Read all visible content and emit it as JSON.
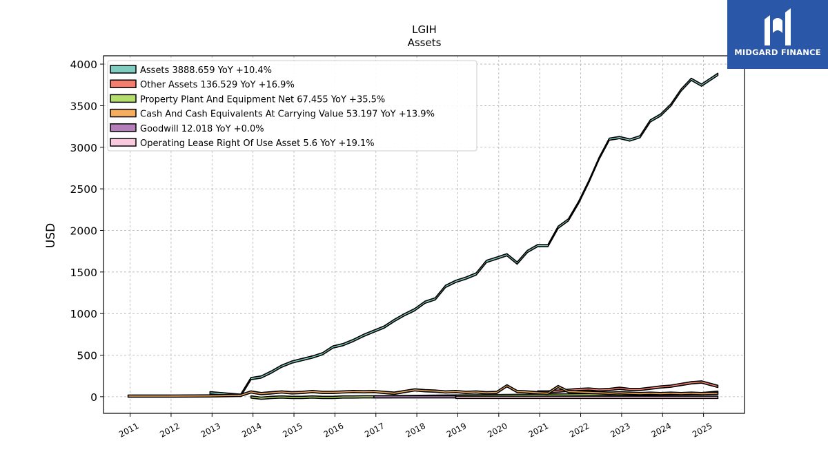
{
  "brand": {
    "name": "MIDGARD FINANCE"
  },
  "chart_data": {
    "type": "area",
    "title": "LGIH",
    "subtitle": "Assets",
    "ylabel": "USD",
    "xlabel": "",
    "ylim": [
      -200,
      4100
    ],
    "xlim": [
      2010.35,
      2026.0
    ],
    "yticks": [
      0,
      500,
      1000,
      1500,
      2000,
      2500,
      3000,
      3500,
      4000
    ],
    "xticks": [
      "2011",
      "2012",
      "2013",
      "2014",
      "2015",
      "2016",
      "2017",
      "2018",
      "2019",
      "2020",
      "2021",
      "2022",
      "2023",
      "2024",
      "2025"
    ],
    "grid": true,
    "legend_position": "top-left",
    "series": [
      {
        "name": "Assets",
        "legend": "Assets  3888.659 YoY +10.4%",
        "color": "#7fccc0",
        "points": [
          [
            2012.95,
            60
          ],
          [
            2013.7,
            30
          ],
          [
            2013.95,
            230
          ],
          [
            2014.2,
            250
          ],
          [
            2014.45,
            310
          ],
          [
            2014.7,
            380
          ],
          [
            2014.95,
            430
          ],
          [
            2015.2,
            460
          ],
          [
            2015.45,
            490
          ],
          [
            2015.7,
            530
          ],
          [
            2015.95,
            610
          ],
          [
            2016.2,
            640
          ],
          [
            2016.45,
            690
          ],
          [
            2016.7,
            750
          ],
          [
            2016.95,
            800
          ],
          [
            2017.2,
            850
          ],
          [
            2017.45,
            930
          ],
          [
            2017.7,
            1000
          ],
          [
            2017.95,
            1060
          ],
          [
            2018.2,
            1150
          ],
          [
            2018.45,
            1190
          ],
          [
            2018.7,
            1340
          ],
          [
            2018.95,
            1400
          ],
          [
            2019.2,
            1440
          ],
          [
            2019.45,
            1490
          ],
          [
            2019.7,
            1640
          ],
          [
            2019.95,
            1680
          ],
          [
            2020.2,
            1720
          ],
          [
            2020.45,
            1620
          ],
          [
            2020.7,
            1760
          ],
          [
            2020.95,
            1830
          ],
          [
            2021.2,
            1830
          ],
          [
            2021.45,
            2050
          ],
          [
            2021.7,
            2140
          ],
          [
            2021.95,
            2350
          ],
          [
            2022.2,
            2600
          ],
          [
            2022.45,
            2880
          ],
          [
            2022.7,
            3110
          ],
          [
            2022.95,
            3130
          ],
          [
            2023.2,
            3100
          ],
          [
            2023.45,
            3140
          ],
          [
            2023.7,
            3330
          ],
          [
            2023.95,
            3400
          ],
          [
            2024.2,
            3520
          ],
          [
            2024.45,
            3700
          ],
          [
            2024.7,
            3830
          ],
          [
            2024.95,
            3760
          ],
          [
            2025.35,
            3890
          ]
        ]
      },
      {
        "name": "Other Assets",
        "legend": "Other Assets  136.529 YoY +16.9%",
        "color": "#f47e6e",
        "points": [
          [
            2020.95,
            70
          ],
          [
            2021.2,
            70
          ],
          [
            2021.45,
            80
          ],
          [
            2021.7,
            90
          ],
          [
            2021.95,
            100
          ],
          [
            2022.2,
            105
          ],
          [
            2022.45,
            95
          ],
          [
            2022.7,
            100
          ],
          [
            2022.95,
            115
          ],
          [
            2023.2,
            100
          ],
          [
            2023.45,
            100
          ],
          [
            2023.7,
            115
          ],
          [
            2023.95,
            130
          ],
          [
            2024.2,
            140
          ],
          [
            2024.45,
            160
          ],
          [
            2024.7,
            180
          ],
          [
            2024.95,
            190
          ],
          [
            2025.35,
            137
          ]
        ]
      },
      {
        "name": "Property Plant And Equipment Net",
        "legend": "Property Plant And Equipment Net  67.455 YoY +35.5%",
        "color": "#b5dd6b",
        "points": [
          [
            2013.95,
            10
          ],
          [
            2014.2,
            -5
          ],
          [
            2014.45,
            5
          ],
          [
            2014.7,
            10
          ],
          [
            2014.95,
            5
          ],
          [
            2015.2,
            5
          ],
          [
            2015.45,
            10
          ],
          [
            2015.7,
            5
          ],
          [
            2015.95,
            5
          ],
          [
            2016.2,
            10
          ],
          [
            2016.45,
            10
          ],
          [
            2016.7,
            12
          ],
          [
            2016.95,
            12
          ],
          [
            2024.95,
            50
          ],
          [
            2025.35,
            67
          ]
        ]
      },
      {
        "name": "Cash And Cash Equivalents At Carrying Value",
        "legend": "Cash And Cash Equivalents At Carrying Value  53.197 YoY +13.9%",
        "color": "#f6ad5d",
        "points": [
          [
            2010.95,
            20
          ],
          [
            2011.95,
            20
          ],
          [
            2012.95,
            22
          ],
          [
            2013.7,
            30
          ],
          [
            2013.95,
            70
          ],
          [
            2014.2,
            50
          ],
          [
            2014.45,
            60
          ],
          [
            2014.7,
            70
          ],
          [
            2014.95,
            60
          ],
          [
            2015.2,
            65
          ],
          [
            2015.45,
            75
          ],
          [
            2015.7,
            65
          ],
          [
            2015.95,
            65
          ],
          [
            2016.2,
            70
          ],
          [
            2016.45,
            75
          ],
          [
            2016.7,
            72
          ],
          [
            2016.95,
            75
          ],
          [
            2017.2,
            65
          ],
          [
            2017.45,
            55
          ],
          [
            2017.7,
            75
          ],
          [
            2017.95,
            95
          ],
          [
            2018.2,
            85
          ],
          [
            2018.45,
            80
          ],
          [
            2018.7,
            70
          ],
          [
            2018.95,
            75
          ],
          [
            2019.2,
            65
          ],
          [
            2019.45,
            70
          ],
          [
            2019.7,
            60
          ],
          [
            2019.95,
            65
          ],
          [
            2020.2,
            145
          ],
          [
            2020.45,
            75
          ],
          [
            2020.7,
            70
          ],
          [
            2020.95,
            60
          ],
          [
            2021.2,
            55
          ],
          [
            2021.45,
            135
          ],
          [
            2021.7,
            75
          ],
          [
            2021.95,
            70
          ],
          [
            2022.2,
            65
          ],
          [
            2022.45,
            60
          ],
          [
            2022.7,
            55
          ],
          [
            2022.95,
            60
          ],
          [
            2023.2,
            55
          ],
          [
            2023.45,
            50
          ],
          [
            2023.7,
            55
          ],
          [
            2023.95,
            50
          ],
          [
            2024.2,
            55
          ],
          [
            2024.45,
            50
          ],
          [
            2024.7,
            55
          ],
          [
            2024.95,
            50
          ],
          [
            2025.35,
            53
          ]
        ]
      },
      {
        "name": "Goodwill",
        "legend": "Goodwill  12.018 YoY +0.0%",
        "color": "#b57fba",
        "points": [
          [
            2016.95,
            12
          ],
          [
            2018.95,
            12
          ]
        ]
      },
      {
        "name": "Operating Lease Right Of Use Asset",
        "legend": "Operating Lease Right Of Use Asset  5.6 YoY +19.1%",
        "color": "#fbc9de",
        "points": [
          [
            2018.95,
            6
          ],
          [
            2025.35,
            6
          ]
        ]
      }
    ]
  }
}
